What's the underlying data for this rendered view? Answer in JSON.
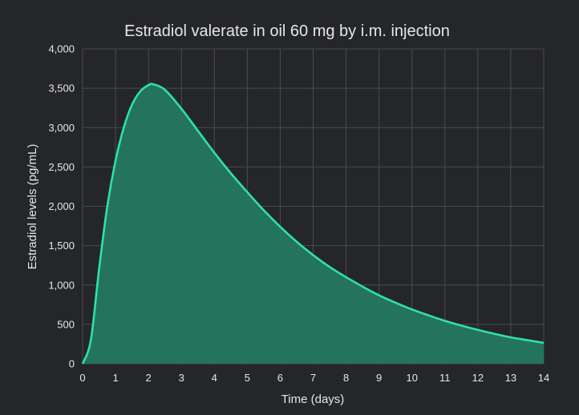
{
  "chart_data": {
    "type": "area",
    "title": "Estradiol valerate in oil 60 mg by i.m. injection",
    "xlabel": "Time (days)",
    "ylabel": "Estradiol levels (pg/mL)",
    "xlim": [
      0,
      14
    ],
    "ylim": [
      0,
      4000
    ],
    "x_ticks": [
      "0",
      "1",
      "2",
      "3",
      "4",
      "5",
      "6",
      "7",
      "8",
      "9",
      "10",
      "11",
      "12",
      "13",
      "14"
    ],
    "y_ticks": [
      "0",
      "500",
      "1,000",
      "1,500",
      "2,000",
      "2,500",
      "3,000",
      "3,500",
      "4,000"
    ],
    "grid": true,
    "legend": "none",
    "series": [
      {
        "color": "#2de2a6",
        "fill": "#247a62",
        "x": [
          0,
          0.25,
          0.5,
          0.75,
          1,
          1.25,
          1.5,
          1.75,
          2,
          2.15,
          2.5,
          3,
          3.5,
          4,
          4.5,
          5,
          5.5,
          6,
          6.5,
          7,
          7.5,
          8,
          8.5,
          9,
          9.5,
          10,
          10.5,
          11,
          11.5,
          12,
          12.5,
          13,
          13.5,
          14
        ],
        "y": [
          0,
          300,
          1200,
          2000,
          2580,
          3000,
          3290,
          3460,
          3540,
          3550,
          3480,
          3240,
          2960,
          2680,
          2420,
          2180,
          1950,
          1740,
          1550,
          1380,
          1230,
          1100,
          980,
          870,
          775,
          690,
          615,
          545,
          485,
          430,
          380,
          335,
          300,
          265
        ]
      }
    ]
  }
}
